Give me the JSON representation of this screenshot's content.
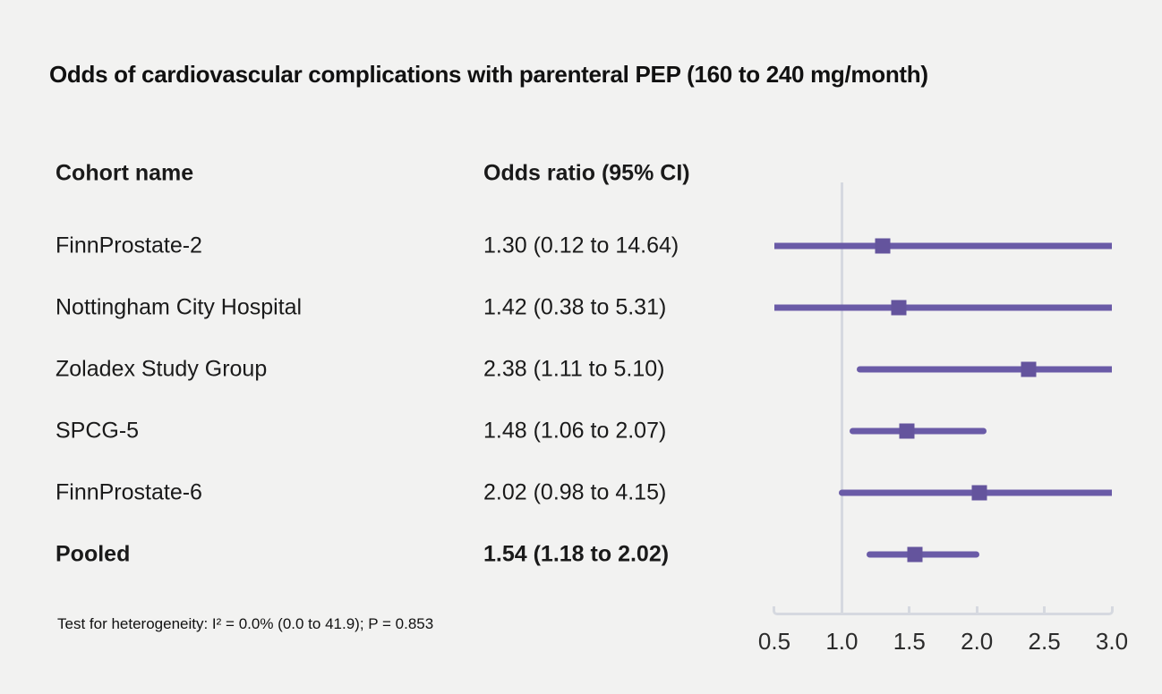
{
  "title": "Odds of cardiovascular complications with parenteral PEP (160 to 240 mg/month)",
  "table": {
    "col1_header": "Cohort name",
    "col2_header": "Odds ratio (95% CI)"
  },
  "footnote": "Test for heterogeneity: I² = 0.0% (0.0 to 41.9); P = 0.853",
  "chart_data": {
    "type": "forest",
    "title": "Odds of cardiovascular complications with parenteral PEP (160 to 240 mg/month)",
    "xlabel": "Odds ratio",
    "axis": {
      "min": 0.5,
      "max": 3.0,
      "reference_line": 1.0,
      "tick_values": [
        0.5,
        1.0,
        1.5,
        2.0,
        2.5,
        3.0
      ],
      "tick_labels": [
        "0.5",
        "1.0",
        "1.5",
        "2.0",
        "2.5",
        "3.0"
      ]
    },
    "rows": [
      {
        "cohort": "FinnProstate-2",
        "label": "1.30 (0.12 to 14.64)",
        "or": 1.3,
        "ci_low": 0.12,
        "ci_high": 14.64,
        "pooled": false
      },
      {
        "cohort": "Nottingham City Hospital",
        "label": "1.42 (0.38 to 5.31)",
        "or": 1.42,
        "ci_low": 0.38,
        "ci_high": 5.31,
        "pooled": false
      },
      {
        "cohort": "Zoladex Study Group",
        "label": "2.38 (1.11 to 5.10)",
        "or": 2.38,
        "ci_low": 1.11,
        "ci_high": 5.1,
        "pooled": false
      },
      {
        "cohort": "SPCG-5",
        "label": "1.48 (1.06 to 2.07)",
        "or": 1.48,
        "ci_low": 1.06,
        "ci_high": 2.07,
        "pooled": false
      },
      {
        "cohort": "FinnProstate-6",
        "label": "2.02 (0.98 to 4.15)",
        "or": 2.02,
        "ci_low": 0.98,
        "ci_high": 4.15,
        "pooled": false
      },
      {
        "cohort": "Pooled",
        "label": "1.54 (1.18 to 2.02)",
        "or": 1.54,
        "ci_low": 1.18,
        "ci_high": 2.02,
        "pooled": true
      }
    ],
    "colors": {
      "background": "#f2f2f1",
      "ci_line": "#6a5ba7",
      "marker": "#64549d",
      "axis": "#d6d9e0",
      "text": "#1a1a1a"
    }
  }
}
